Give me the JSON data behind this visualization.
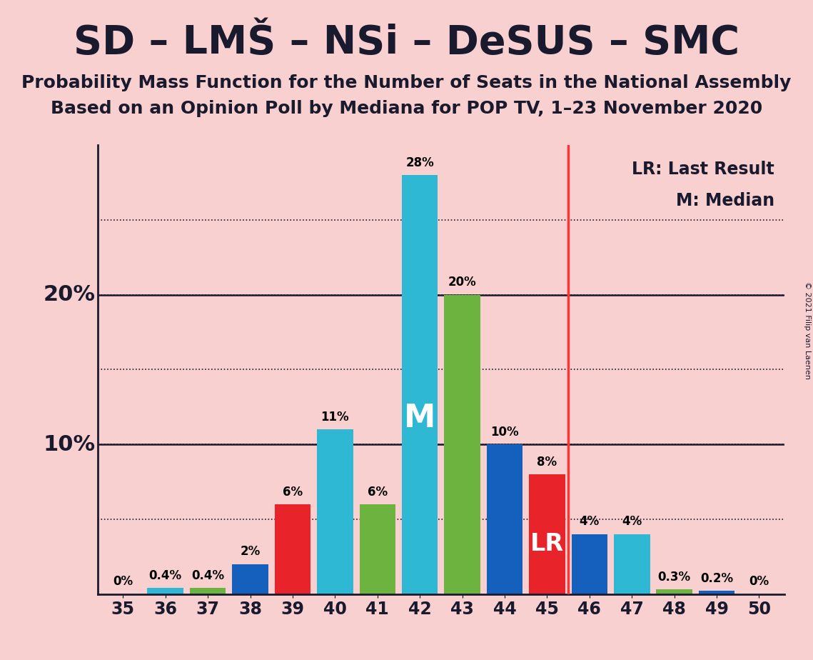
{
  "title": "SD – LMŠ – NSi – DeSUS – SMC",
  "subtitle1": "Probability Mass Function for the Number of Seats in the National Assembly",
  "subtitle2": "Based on an Opinion Poll by Mediana for POP TV, 1–23 November 2020",
  "copyright": "© 2021 Filip van Laenen",
  "background_color": "#f9d0d0",
  "seats": [
    35,
    36,
    37,
    38,
    39,
    40,
    41,
    42,
    43,
    44,
    45,
    46,
    47,
    48,
    49,
    50
  ],
  "values": [
    0.0,
    0.4,
    0.4,
    2.0,
    6.0,
    11.0,
    6.0,
    28.0,
    20.0,
    10.0,
    8.0,
    4.0,
    4.0,
    0.3,
    0.2,
    0.0
  ],
  "bar_colors": [
    "#1560bd",
    "#2eb8d4",
    "#6db33f",
    "#1560bd",
    "#e8232a",
    "#2eb8d4",
    "#6db33f",
    "#2eb8d4",
    "#6db33f",
    "#1560bd",
    "#e8232a",
    "#1560bd",
    "#2eb8d4",
    "#6db33f",
    "#1560bd",
    "#2eb8d4"
  ],
  "median_seat": 42,
  "last_result_seat": 45,
  "ylim": [
    0,
    30
  ],
  "grid_yticks": [
    5,
    10,
    15,
    20,
    25
  ],
  "solid_yticks": [
    10,
    20
  ],
  "legend_lr": "LR: Last Result",
  "legend_m": "M: Median",
  "title_fontsize": 40,
  "subtitle_fontsize": 18,
  "tick_label_fontsize": 17,
  "bar_label_fontsize": 12,
  "ylabel_fontsize": 22,
  "legend_fontsize": 17,
  "copyright_fontsize": 8
}
